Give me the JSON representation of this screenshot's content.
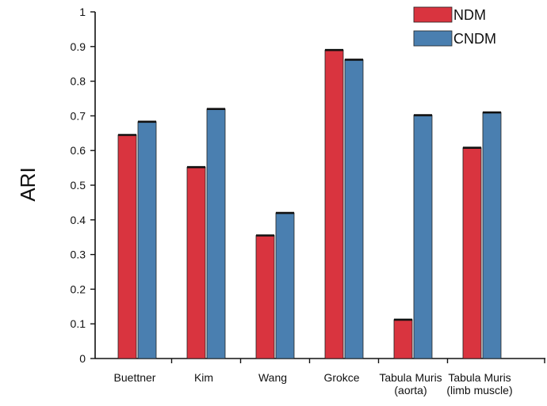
{
  "chart_data": {
    "type": "bar",
    "categories": [
      [
        "Buettner"
      ],
      [
        "Kim"
      ],
      [
        "Wang"
      ],
      [
        "Grokce"
      ],
      [
        "Tabula Muris",
        "(aorta)"
      ],
      [
        "Tabula Muris",
        "(limb muscle)"
      ]
    ],
    "series": [
      {
        "name": "NDM",
        "color": "#d9343f",
        "values": [
          0.645,
          0.552,
          0.355,
          0.89,
          0.112,
          0.608
        ]
      },
      {
        "name": "CNDM",
        "color": "#4a7fb0",
        "values": [
          0.683,
          0.72,
          0.42,
          0.862,
          0.702,
          0.71
        ]
      }
    ],
    "ylabel": "ARI",
    "xlabel": "",
    "ylim": [
      0,
      1
    ],
    "yticks": [
      "0",
      "0.1",
      "0.2",
      "0.3",
      "0.4",
      "0.5",
      "0.6",
      "0.7",
      "0.8",
      "0.9",
      "1"
    ],
    "grid": false,
    "legend": "top-right"
  }
}
